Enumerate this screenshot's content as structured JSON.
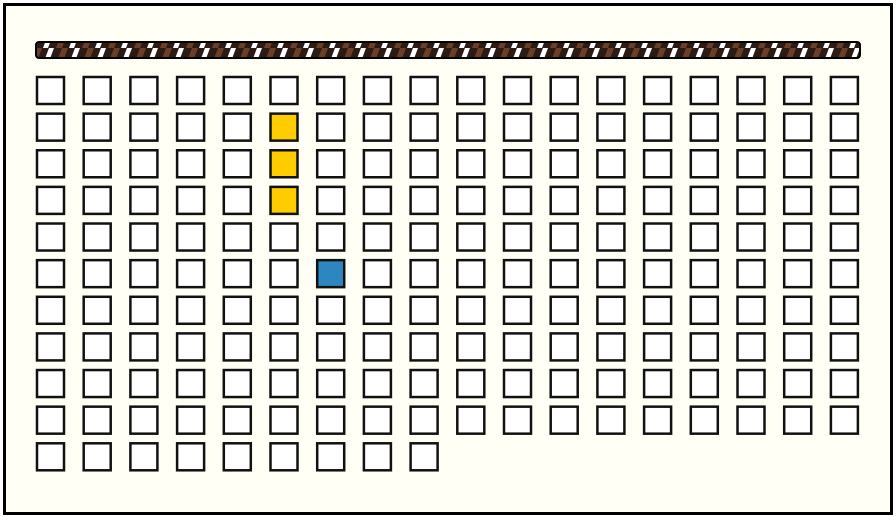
{
  "board": {
    "columns": 18,
    "cells": 189,
    "colors": {
      "empty": "#ffffff",
      "yellow": "#ffcc00",
      "blue": "#2e86c1"
    },
    "yellow": [
      23,
      41,
      59
    ],
    "blue": [
      96
    ]
  }
}
